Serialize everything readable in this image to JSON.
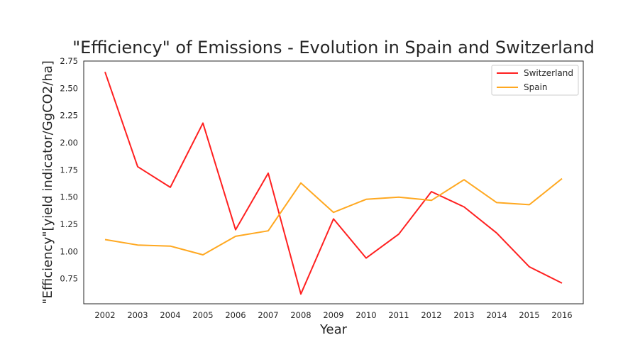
{
  "chart_data": {
    "type": "line",
    "title": "\"Efficiency\" of Emissions - Evolution in Spain and Switzerland",
    "xlabel": "Year",
    "ylabel": "\"Efficiency\"[yield indicator/GgCO2/ha]",
    "categories": [
      "2002",
      "2003",
      "2004",
      "2005",
      "2006",
      "2007",
      "2008",
      "2009",
      "2010",
      "2011",
      "2012",
      "2013",
      "2014",
      "2015",
      "2016"
    ],
    "yticks": [
      "0.75",
      "1.00",
      "1.25",
      "1.50",
      "1.75",
      "2.00",
      "2.25",
      "2.50",
      "2.75"
    ],
    "ylim": [
      0.52,
      2.75
    ],
    "grid": false,
    "legend_position": "top-right",
    "series": [
      {
        "name": "Switzerland",
        "color": "#ff2020",
        "values": [
          2.65,
          1.78,
          1.59,
          2.18,
          1.2,
          1.72,
          0.61,
          1.3,
          0.94,
          1.16,
          1.55,
          1.41,
          1.17,
          0.86,
          0.71
        ]
      },
      {
        "name": "Spain",
        "color": "#ffa820",
        "values": [
          1.11,
          1.06,
          1.05,
          0.97,
          1.14,
          1.19,
          1.63,
          1.36,
          1.48,
          1.5,
          1.47,
          1.66,
          1.45,
          1.43,
          1.67
        ]
      }
    ]
  }
}
